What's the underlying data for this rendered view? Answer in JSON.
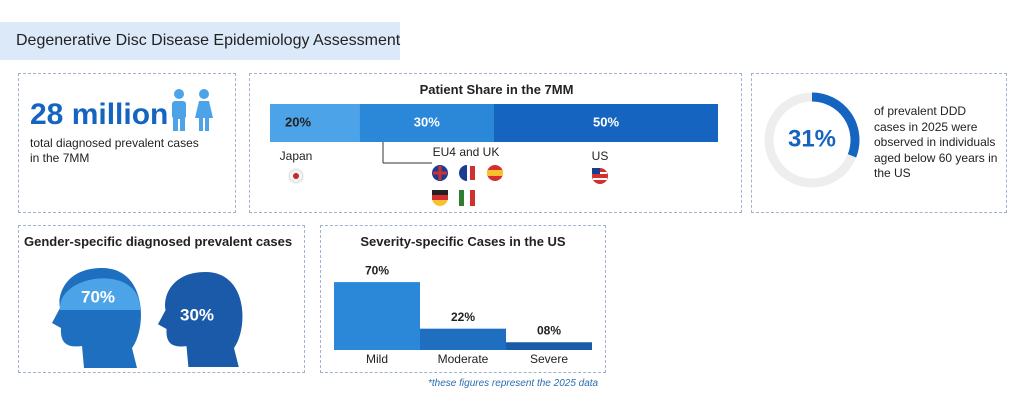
{
  "header": {
    "title": "Degenerative Disc Disease Epidemiology Assessment"
  },
  "stat": {
    "value": "28 million",
    "text": "total diagnosed prevalent cases in the 7MM"
  },
  "chart_data": [
    {
      "type": "stacked-bar",
      "title": "Patient Share in the 7MM",
      "categories": [
        "Japan",
        "EU4 and UK",
        "US"
      ],
      "values": [
        20,
        30,
        50
      ],
      "value_labels": [
        "20%",
        "30%",
        "50%"
      ],
      "colors": [
        "#4da3e8",
        "#2b88d8",
        "#1565c0"
      ]
    },
    {
      "type": "donut",
      "values": [
        31
      ],
      "value_labels": [
        "31%"
      ],
      "color": "#1565c0",
      "text": "of prevalent DDD cases in 2025 were observed in individuals aged below 60 years in the US"
    },
    {
      "type": "gender",
      "title": "Gender-specific diagnosed prevalent cases",
      "values": [
        70,
        30
      ],
      "value_labels": [
        "70%",
        "30%"
      ],
      "colors": [
        "#1f6fc0",
        "#1a5aa8"
      ]
    },
    {
      "type": "bar",
      "title": "Severity-specific Cases in the US",
      "categories": [
        "Mild",
        "Moderate",
        "Severe"
      ],
      "values": [
        70,
        22,
        8
      ],
      "value_labels": [
        "70%",
        "22%",
        "08%"
      ],
      "colors": [
        "#2b88d8",
        "#1f6fc0",
        "#1a5aa8"
      ]
    }
  ],
  "footnote": "*these figures represent the 2025 data"
}
